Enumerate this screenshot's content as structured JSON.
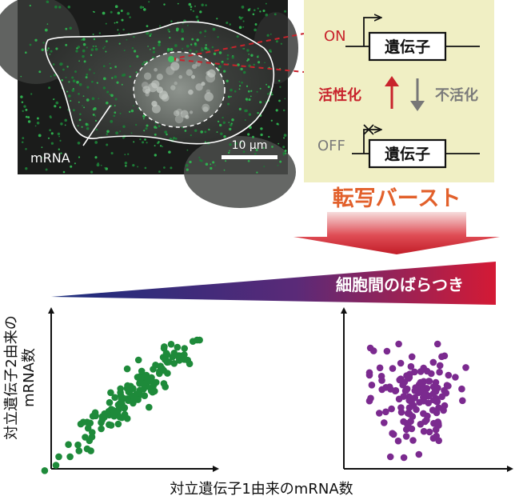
{
  "micrograph": {
    "cell_label": "mRNA",
    "scale_bar_label": "10 μm"
  },
  "gene_panel": {
    "on_label": "ON",
    "off_label": "OFF",
    "gene_label": "遺伝子",
    "activation_label": "活性化",
    "inactivation_label": "不活化"
  },
  "transcriptional_burst_label": "転写バースト",
  "cell_to_cell_variability_label": "細胞間のばらつき",
  "plots": {
    "x_axis_label": "対立遺伝子1由来のmRNA数",
    "y_axis_label_line1": "対立遺伝子2由来の",
    "y_axis_label_line2": "mRNA数"
  },
  "colors": {
    "panel_bg": "#f0efc4",
    "red_accent": "#c8232c",
    "burst_orange": "#e2602b",
    "gray_text": "#7a7a7a",
    "green_points": "#1e8a3a",
    "purple_points": "#7b2a8f",
    "gradient_dark_blue": "#1f2f7a"
  }
}
